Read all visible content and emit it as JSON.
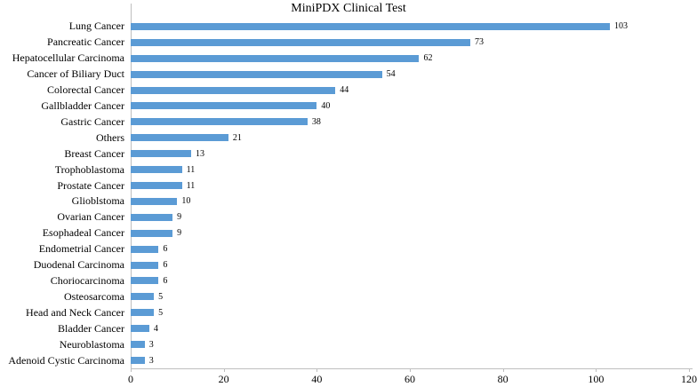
{
  "chart_data": {
    "type": "bar",
    "orientation": "horizontal",
    "title": "MiniPDX Clinical Test",
    "categories": [
      "Lung Cancer",
      "Pancreatic Cancer",
      "Hepatocellular Carcinoma",
      "Cancer of Biliary Duct",
      "Colorectal Cancer",
      "Gallbladder Cancer",
      "Gastric Cancer",
      "Others",
      "Breast Cancer",
      "Trophoblastoma",
      "Prostate Cancer",
      "Glioblstoma",
      "Ovarian Cancer",
      "Esophadeal Cancer",
      "Endometrial Cancer",
      "Duodenal Carcinoma",
      "Choriocarcinoma",
      "Osteosarcoma",
      "Head and Neck Cancer",
      "Bladder Cancer",
      "Neuroblastoma",
      "Adenoid Cystic Carcinoma"
    ],
    "values": [
      103,
      73,
      62,
      54,
      44,
      40,
      38,
      21,
      13,
      11,
      11,
      10,
      9,
      9,
      6,
      6,
      6,
      5,
      5,
      4,
      3,
      3
    ],
    "value_labels_shown": true,
    "xlim": [
      0,
      120
    ],
    "x_ticks": [
      0,
      20,
      40,
      60,
      80,
      100,
      120
    ],
    "grid": false,
    "legend": "none",
    "bar_color": "#5b9bd5",
    "axis_color": "#bfbfbf",
    "text_color": "#000000"
  }
}
